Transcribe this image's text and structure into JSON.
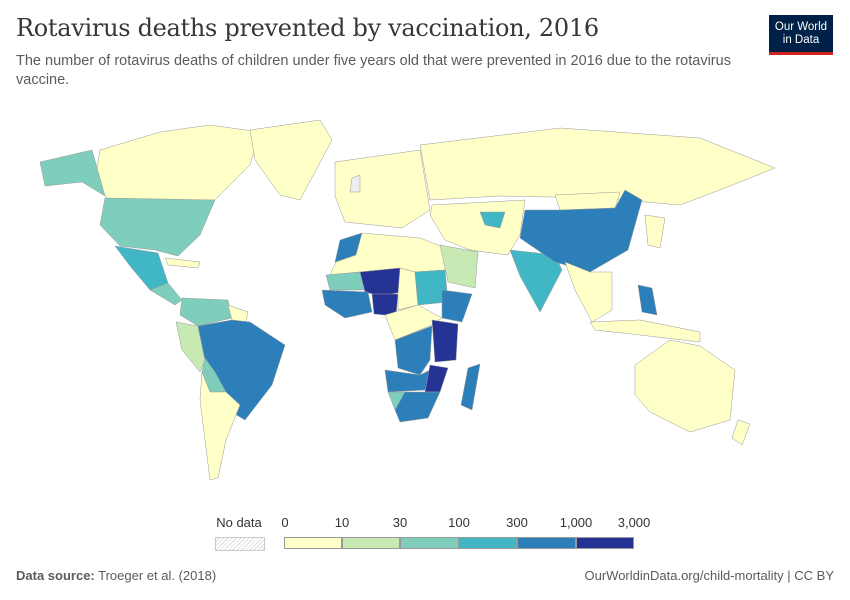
{
  "header": {
    "title": "Rotavirus deaths prevented by vaccination, 2016",
    "subtitle": "The number of rotavirus deaths of children under five years old that were prevented in 2016 due to the rotavirus vaccine.",
    "logo_line1": "Our World",
    "logo_line2": "in Data"
  },
  "legend": {
    "no_data_label": "No data",
    "ticks": [
      "0",
      "10",
      "30",
      "100",
      "300",
      "1,000",
      "3,000"
    ],
    "colors": [
      "#ffffc8",
      "#c7e9b4",
      "#7fcdbb",
      "#41b6c4",
      "#2c7fb8",
      "#253494"
    ],
    "no_data_pattern": "hatched-gray"
  },
  "footer": {
    "source_label": "Data source:",
    "source_value": "Troeger et al. (2018)",
    "url_license": "OurWorldinData.org/child-mortality | CC BY"
  }
}
